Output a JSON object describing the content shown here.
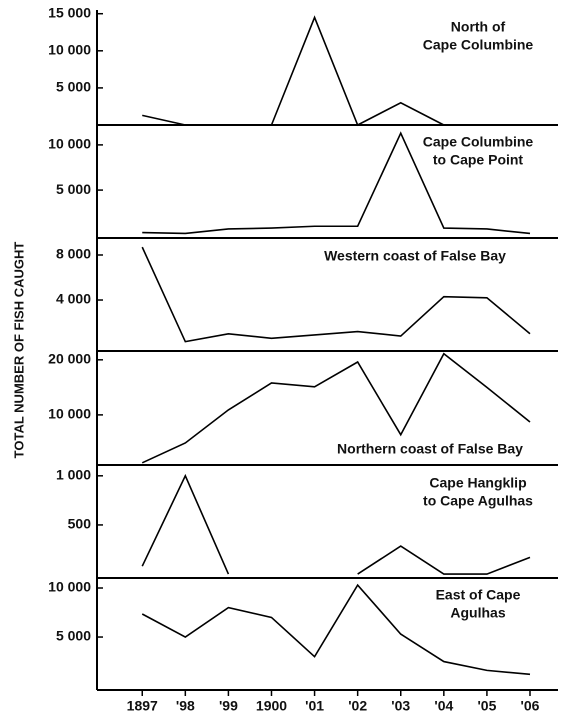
{
  "chart_data": [
    {
      "type": "line",
      "title": [
        "North of",
        "Cape Columbine"
      ],
      "ylabel": "TOTAL NUMBER OF FISH CAUGHT",
      "x": [
        1897,
        1898,
        1899,
        1900,
        1901,
        1902,
        1903,
        1904,
        1905,
        1906
      ],
      "values": [
        1300,
        0,
        0,
        0,
        14500,
        0,
        3000,
        0,
        null,
        null
      ],
      "color": "#000000",
      "ylim": [
        0,
        15500
      ],
      "yticks": [
        {
          "value": 5000,
          "label": "5 000"
        },
        {
          "value": 10000,
          "label": "10 000"
        },
        {
          "value": 15000,
          "label": "15 000"
        }
      ]
    },
    {
      "type": "line",
      "title": [
        "Cape Columbine",
        "to Cape Point"
      ],
      "x": [
        1897,
        1898,
        1899,
        1900,
        1901,
        1902,
        1903,
        1904,
        1905,
        1906
      ],
      "values": [
        300,
        200,
        700,
        800,
        1000,
        1000,
        11300,
        800,
        700,
        200
      ],
      "color": "#000000",
      "ylim": [
        -300,
        12200
      ],
      "yticks": [
        {
          "value": 5000,
          "label": "5 000"
        },
        {
          "value": 10000,
          "label": "10 000"
        }
      ]
    },
    {
      "type": "line",
      "title": [
        "Western coast of False Bay"
      ],
      "x": [
        1897,
        1898,
        1899,
        1900,
        1901,
        1902,
        1903,
        1904,
        1905,
        1906
      ],
      "values": [
        8700,
        300,
        1000,
        600,
        900,
        1200,
        800,
        4300,
        4200,
        1000
      ],
      "color": "#000000",
      "ylim": [
        -530,
        9510
      ],
      "yticks": [
        {
          "value": 4000,
          "label": "4 000"
        },
        {
          "value": 8000,
          "label": "8 000"
        }
      ]
    },
    {
      "type": "line",
      "title": [
        "Northern coast of False Bay"
      ],
      "x": [
        1897,
        1898,
        1899,
        1900,
        1901,
        1902,
        1903,
        1904,
        1905,
        1906
      ],
      "values": [
        1300,
        4900,
        10900,
        15800,
        15100,
        19600,
        6400,
        21100,
        15000,
        8700
      ],
      "color": "#000000",
      "ylim": [
        900,
        21600
      ],
      "yticks": [
        {
          "value": 10000,
          "label": "10 000"
        },
        {
          "value": 20000,
          "label": "20 000"
        }
      ]
    },
    {
      "type": "line",
      "title": [
        "Cape Hangklip",
        "to Cape Agulhas"
      ],
      "x": [
        1897,
        1898,
        1899,
        1900,
        1901,
        1902,
        1903,
        1904,
        1905,
        1906
      ],
      "values": [
        80,
        1000,
        0,
        null,
        null,
        0,
        285,
        0,
        0,
        170
      ],
      "color": "#000000",
      "ylim": [
        -40,
        1110
      ],
      "yticks": [
        500,
        {
          "value": 1000,
          "label": "1 000"
        }
      ]
    },
    {
      "type": "line",
      "title": [
        "East of Cape",
        "Agulhas"
      ],
      "x": [
        1897,
        1898,
        1899,
        1900,
        1901,
        1902,
        1903,
        1904,
        1905,
        1906
      ],
      "values": [
        7350,
        5000,
        8000,
        7000,
        3000,
        10300,
        5300,
        2500,
        1600,
        1200
      ],
      "color": "#000000",
      "ylim": [
        -400,
        11020
      ],
      "yticks": [
        {
          "value": 5000,
          "label": "5 000"
        },
        {
          "value": 10000,
          "label": "10 000"
        }
      ],
      "xlim": [
        1895.95,
        1906.65
      ],
      "xticks": [
        1897,
        {
          "value": 1898,
          "label": "'98"
        },
        {
          "value": 1899,
          "label": "'99"
        },
        1900,
        {
          "value": 1901,
          "label": "'01"
        },
        {
          "value": 1902,
          "label": "'02"
        },
        {
          "value": 1903,
          "label": "'03"
        },
        {
          "value": 1904,
          "label": "'04"
        },
        {
          "value": 1905,
          "label": "'05"
        },
        {
          "value": 1906,
          "label": "'06"
        }
      ]
    }
  ]
}
